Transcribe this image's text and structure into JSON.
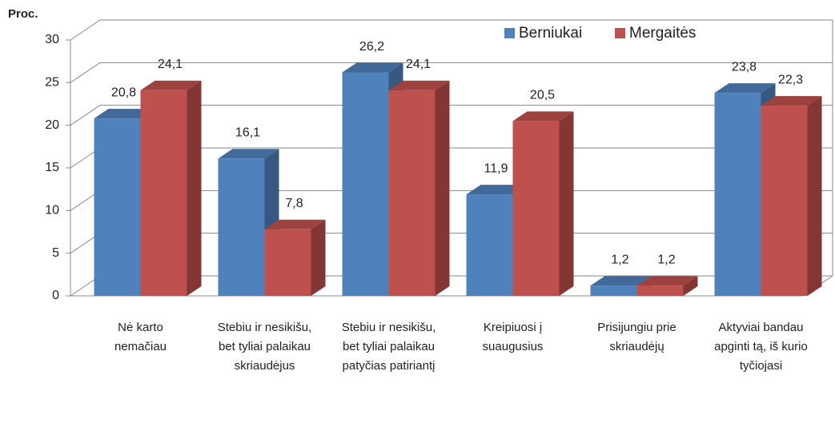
{
  "chart_data": {
    "type": "bar3d",
    "y_label": "Proc.",
    "categories": [
      "Nė karto nemačiau",
      "Stebiu ir nesikišu, bet tyliai palaikau skriaudėjus",
      "Stebiu ir nesikišu, bet tyliai palaikau patyčias patiriantį",
      "Kreipiuosi į suaugusius",
      "Prisijungiu prie skriaudėjų",
      "Aktyviai bandau apginti tą, iš kurio tyčiojasi"
    ],
    "series": [
      {
        "name": "Berniukai",
        "color": "#4f81bd",
        "values": [
          20.8,
          16.1,
          26.2,
          11.9,
          1.2,
          23.8
        ],
        "value_labels": [
          "20,8",
          "16,1",
          "26,2",
          "11,9",
          "1,2",
          "23,8"
        ]
      },
      {
        "name": "Mergaitės",
        "color": "#c0504d",
        "values": [
          24.1,
          7.8,
          24.1,
          20.5,
          1.2,
          22.3
        ],
        "value_labels": [
          "24,1",
          "7,8",
          "24,1",
          "20,5",
          "1,2",
          "22,3"
        ]
      }
    ],
    "ylim": [
      0,
      30
    ],
    "yticks": [
      0,
      5,
      10,
      15,
      20,
      25,
      30
    ],
    "grid": true,
    "legend": "top-right"
  }
}
